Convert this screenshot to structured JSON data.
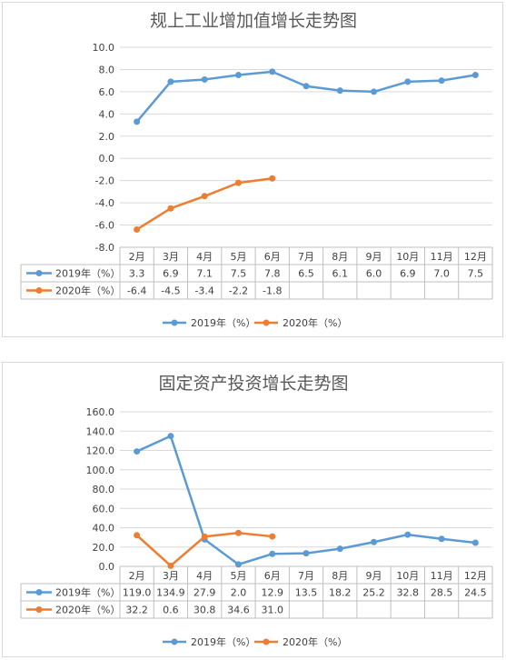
{
  "chart_data": [
    {
      "type": "line",
      "title": "规上工业增加值增长走势图",
      "categories": [
        "2月",
        "3月",
        "4月",
        "5月",
        "6月",
        "7月",
        "8月",
        "9月",
        "10月",
        "11月",
        "12月"
      ],
      "series": [
        {
          "name": "2019年（%）",
          "color": "#5b9bd5",
          "values": [
            3.3,
            6.9,
            7.1,
            7.5,
            7.8,
            6.5,
            6.1,
            6.0,
            6.9,
            7.0,
            7.5
          ],
          "labels": [
            "3.3",
            "6.9",
            "7.1",
            "7.5",
            "7.8",
            "6.5",
            "6.1",
            "6.0",
            "6.9",
            "7.0",
            "7.5"
          ]
        },
        {
          "name": "2020年（%）",
          "color": "#ed7d31",
          "values": [
            -6.4,
            -4.5,
            -3.4,
            -2.2,
            -1.8,
            null,
            null,
            null,
            null,
            null,
            null
          ],
          "labels": [
            "-6.4",
            "-4.5",
            "-3.4",
            "-2.2",
            "-1.8",
            "",
            "",
            "",
            "",
            "",
            ""
          ]
        }
      ],
      "ylim": [
        -8,
        10
      ],
      "ytick_step": 2,
      "ytick_labels": [
        "-8.0",
        "-6.0",
        "-4.0",
        "-2.0",
        "0.0",
        "2.0",
        "4.0",
        "6.0",
        "8.0",
        "10.0"
      ],
      "grid": true,
      "legend": "bottom",
      "data_table": true
    },
    {
      "type": "line",
      "title": "固定资产投资增长走势图",
      "categories": [
        "2月",
        "3月",
        "4月",
        "5月",
        "6月",
        "7月",
        "8月",
        "9月",
        "10月",
        "11月",
        "12月"
      ],
      "series": [
        {
          "name": "2019年（%）",
          "color": "#5b9bd5",
          "values": [
            119.0,
            134.9,
            27.9,
            2.0,
            12.9,
            13.5,
            18.2,
            25.2,
            32.8,
            28.5,
            24.5
          ],
          "labels": [
            "119.0",
            "134.9",
            "27.9",
            "2.0",
            "12.9",
            "13.5",
            "18.2",
            "25.2",
            "32.8",
            "28.5",
            "24.5"
          ]
        },
        {
          "name": "2020年（%）",
          "color": "#ed7d31",
          "values": [
            32.2,
            0.6,
            30.8,
            34.6,
            31.0,
            null,
            null,
            null,
            null,
            null,
            null
          ],
          "labels": [
            "32.2",
            "0.6",
            "30.8",
            "34.6",
            "31.0",
            "",
            "",
            "",
            "",
            "",
            ""
          ]
        }
      ],
      "ylim": [
        0,
        160
      ],
      "ytick_step": 20,
      "ytick_labels": [
        "0.0",
        "20.0",
        "40.0",
        "60.0",
        "80.0",
        "100.0",
        "120.0",
        "140.0",
        "160.0"
      ],
      "grid": true,
      "legend": "bottom",
      "data_table": true
    }
  ]
}
